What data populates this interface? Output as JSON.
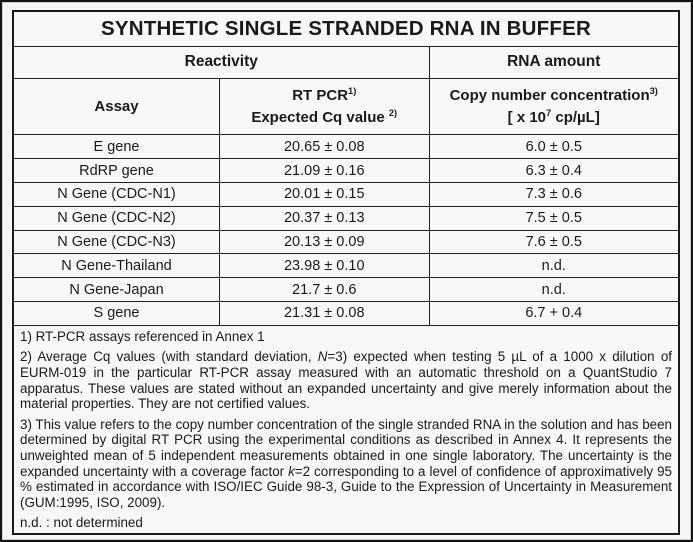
{
  "page": {
    "title": "SYNTHETIC SINGLE STRANDED RNA IN BUFFER"
  },
  "table": {
    "group_headers": {
      "reactivity": "Reactivity",
      "rna_amount": "RNA amount"
    },
    "column_headers": {
      "assay": "Assay",
      "rt_pcr": "RT PCR",
      "rt_pcr_sup": "1)",
      "expected_cq": "Expected Cq value ",
      "expected_cq_sup": "2)",
      "copy_number": "Copy number concentration",
      "copy_number_sup": "3)",
      "unit_prefix": "[ x 10",
      "unit_exp": "7",
      "unit_suffix": " cp/µL]"
    },
    "rows": [
      {
        "assay": "E gene",
        "cq": "20.65 ± 0.08",
        "copy": "6.0 ± 0.5"
      },
      {
        "assay": "RdRP gene",
        "cq": "21.09 ± 0.16",
        "copy": "6.3 ± 0.4"
      },
      {
        "assay": "N Gene (CDC-N1)",
        "cq": "20.01 ± 0.15",
        "copy": "7.3 ± 0.6"
      },
      {
        "assay": "N Gene (CDC-N2)",
        "cq": "20.37 ± 0.13",
        "copy": "7.5 ± 0.5"
      },
      {
        "assay": "N Gene (CDC-N3)",
        "cq": "20.13 ± 0.09",
        "copy": "7.6 ± 0.5"
      },
      {
        "assay": "N Gene-Thailand",
        "cq": "23.98 ± 0.10",
        "copy": "n.d."
      },
      {
        "assay": "N Gene-Japan",
        "cq": "21.7 ± 0.6",
        "copy": "n.d."
      },
      {
        "assay": "S gene",
        "cq": "21.31 ± 0.08",
        "copy": "6.7 + 0.4"
      }
    ]
  },
  "footnotes": {
    "note1": "1) RT-PCR assays referenced in Annex 1",
    "note2": {
      "pre": "2) Average Cq values (with standard deviation, ",
      "italic": "N",
      "post": "=3) expected when testing 5 µL of a 1000 x dilution of EURM-019 in the particular RT-PCR assay measured with an automatic threshold on a QuantStudio 7 apparatus. These values are stated without an expanded uncertainty and give merely information about the material properties. They are not certified values."
    },
    "note3": {
      "pre": "3) This value refers to the copy number concentration of the single stranded RNA in the solution and has been determined by digital RT PCR using the experimental conditions as described in Annex 4. It represents the unweighted mean of 5 independent measurements obtained in one single laboratory. The uncertainty is the expanded uncertainty with a coverage factor ",
      "italic": "k",
      "post": "=2 corresponding to a level of confidence of approximatively 95 % estimated in accordance with ISO/IEC Guide 98-3, Guide to the Expression of Uncertainty in Measurement (GUM:1995, ISO, 2009)."
    },
    "nd": "n.d. : not determined"
  },
  "colors": {
    "text": "#1a1a1a",
    "border": "#1e1e1e",
    "background": "#f6f6f6"
  }
}
